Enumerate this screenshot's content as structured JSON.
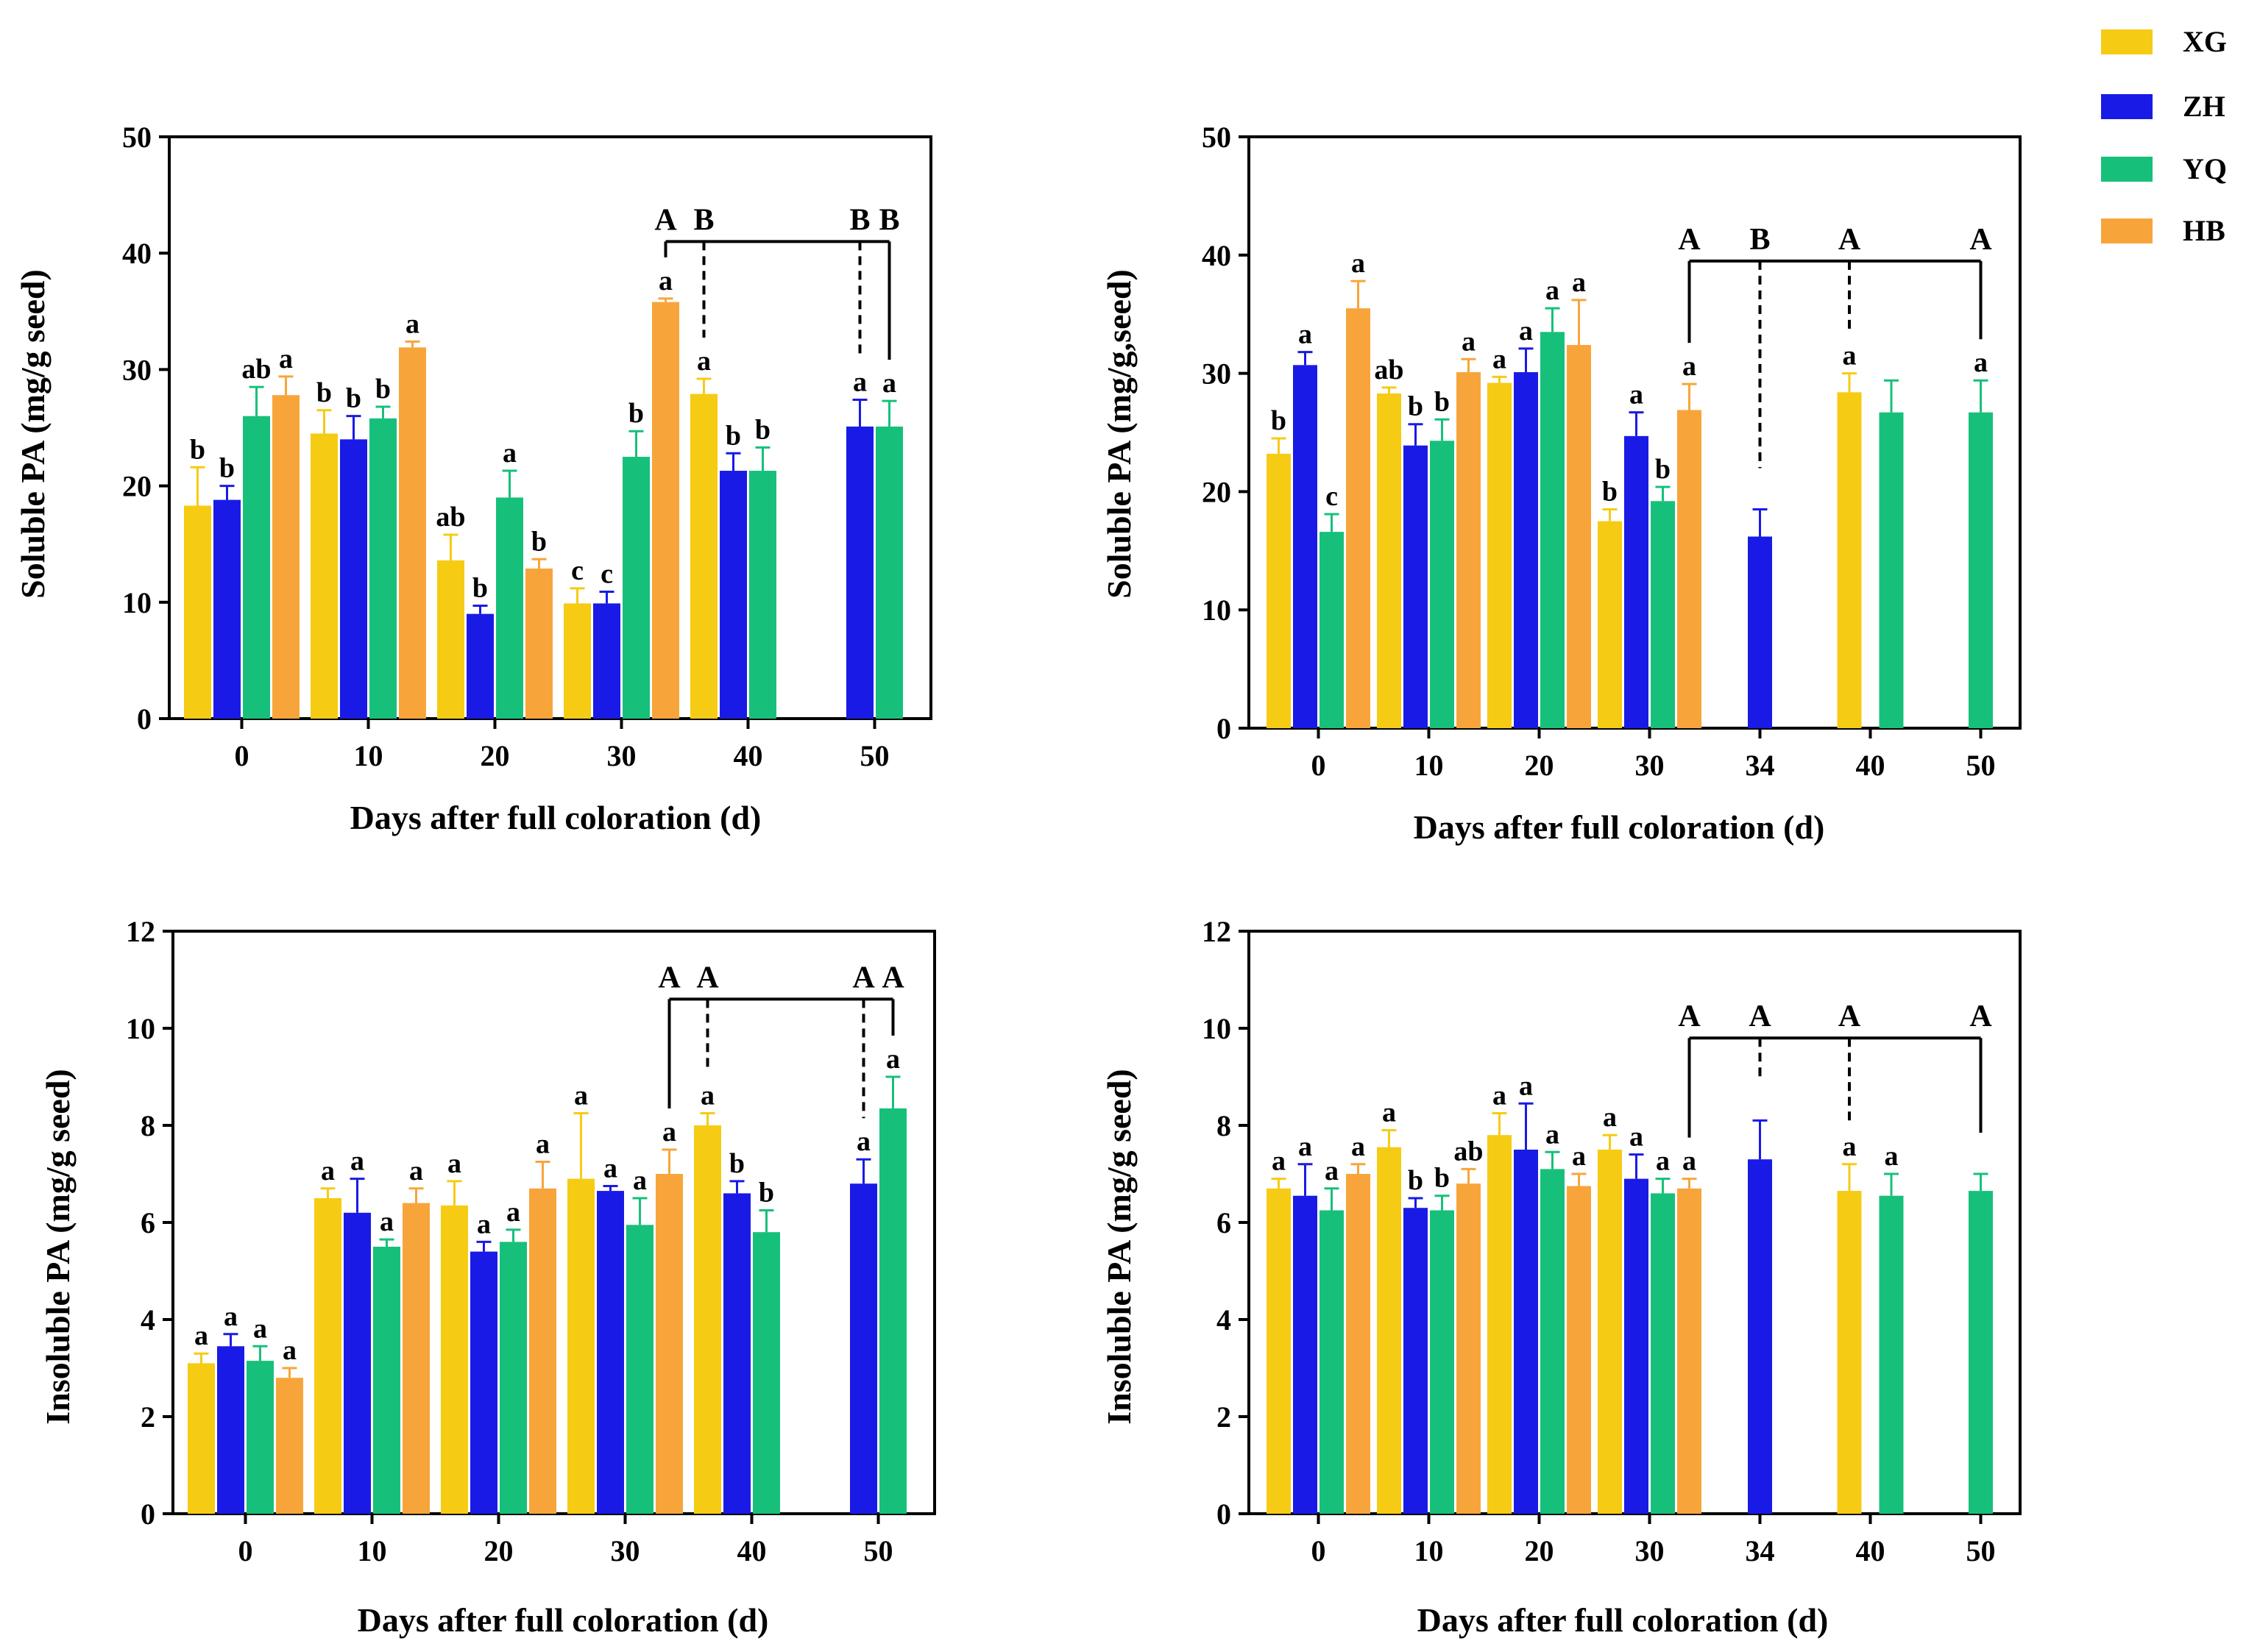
{
  "legend": [
    {
      "name": "XG",
      "color": "#F6CB14"
    },
    {
      "name": "ZH",
      "color": "#1A1AE6"
    },
    {
      "name": "YQ",
      "color": "#17C07A"
    },
    {
      "name": "HB",
      "color": "#F7A53A"
    }
  ],
  "chart_data": [
    {
      "type": "bar",
      "panel": "top-left",
      "ylabel": "Soluble PA (mg/g  seed)",
      "xlabel": "Days after full coloration (d)",
      "ylim": [
        0,
        50
      ],
      "yticks": [
        0,
        10,
        20,
        30,
        40,
        50
      ],
      "groups": [
        {
          "label": "0",
          "bars": [
            {
              "series": "XG",
              "value": 18.3,
              "err": 3.3,
              "sig": "b"
            },
            {
              "series": "ZH",
              "value": 18.8,
              "err": 1.2,
              "sig": "b"
            },
            {
              "series": "YQ",
              "value": 26.0,
              "err": 2.5,
              "sig": "ab"
            },
            {
              "series": "HB",
              "value": 27.8,
              "err": 1.6,
              "sig": "a"
            }
          ]
        },
        {
          "label": "10",
          "bars": [
            {
              "series": "XG",
              "value": 24.5,
              "err": 2.0,
              "sig": "b"
            },
            {
              "series": "ZH",
              "value": 24.0,
              "err": 2.0,
              "sig": "b"
            },
            {
              "series": "YQ",
              "value": 25.8,
              "err": 1.0,
              "sig": "b"
            },
            {
              "series": "HB",
              "value": 31.9,
              "err": 0.5,
              "sig": "a"
            }
          ]
        },
        {
          "label": "20",
          "bars": [
            {
              "series": "XG",
              "value": 13.6,
              "err": 2.2,
              "sig": "ab"
            },
            {
              "series": "ZH",
              "value": 9.0,
              "err": 0.7,
              "sig": "b"
            },
            {
              "series": "YQ",
              "value": 19.0,
              "err": 2.3,
              "sig": "a"
            },
            {
              "series": "HB",
              "value": 12.9,
              "err": 0.8,
              "sig": "b"
            }
          ]
        },
        {
          "label": "30",
          "bars": [
            {
              "series": "XG",
              "value": 9.9,
              "err": 1.3,
              "sig": "c"
            },
            {
              "series": "ZH",
              "value": 9.9,
              "err": 1.0,
              "sig": "c"
            },
            {
              "series": "YQ",
              "value": 22.5,
              "err": 2.2,
              "sig": "b"
            },
            {
              "series": "HB",
              "value": 35.8,
              "err": 0.3,
              "sig": "a"
            }
          ]
        },
        {
          "label": "40",
          "bars": [
            {
              "series": "XG",
              "value": 27.9,
              "err": 1.3,
              "sig": "a"
            },
            {
              "series": "ZH",
              "value": 21.3,
              "err": 1.5,
              "sig": "b"
            },
            {
              "series": "YQ",
              "value": 21.3,
              "err": 2.0,
              "sig": "b"
            },
            {
              "series": "HB",
              "value": null,
              "err": null,
              "sig": ""
            }
          ]
        },
        {
          "label": "50",
          "bars": [
            {
              "series": "XG",
              "value": null,
              "err": null,
              "sig": ""
            },
            {
              "series": "ZH",
              "value": 25.1,
              "err": 2.3,
              "sig": "a"
            },
            {
              "series": "YQ",
              "value": 25.1,
              "err": 2.2,
              "sig": "a"
            },
            {
              "series": "HB",
              "value": null,
              "err": null,
              "sig": ""
            }
          ]
        }
      ],
      "bracket": {
        "level": 41,
        "letters": [
          {
            "group": 3,
            "series": "HB",
            "letter": "A",
            "solid": true
          },
          {
            "group": 4,
            "series": "XG",
            "letter": "B",
            "solid": false
          },
          {
            "group": 5,
            "series": "ZH",
            "letter": "B",
            "solid": false
          },
          {
            "group": 5,
            "series": "YQ",
            "letter": "B",
            "solid": true
          }
        ]
      }
    },
    {
      "type": "bar",
      "panel": "top-right",
      "ylabel": "Soluble PA (mg/g,seed)",
      "xlabel": "Days after full coloration (d)",
      "ylim": [
        0,
        50
      ],
      "yticks": [
        0,
        10,
        20,
        30,
        40,
        50
      ],
      "groups": [
        {
          "label": "0",
          "bars": [
            {
              "series": "XG",
              "value": 23.2,
              "err": 1.3,
              "sig": "b"
            },
            {
              "series": "ZH",
              "value": 30.7,
              "err": 1.1,
              "sig": "a"
            },
            {
              "series": "YQ",
              "value": 16.6,
              "err": 1.5,
              "sig": "c"
            },
            {
              "series": "HB",
              "value": 35.5,
              "err": 2.3,
              "sig": "a"
            }
          ]
        },
        {
          "label": "10",
          "bars": [
            {
              "series": "XG",
              "value": 28.3,
              "err": 0.5,
              "sig": "ab"
            },
            {
              "series": "ZH",
              "value": 23.9,
              "err": 1.8,
              "sig": "b"
            },
            {
              "series": "YQ",
              "value": 24.3,
              "err": 1.8,
              "sig": "b"
            },
            {
              "series": "HB",
              "value": 30.1,
              "err": 1.1,
              "sig": "a"
            }
          ]
        },
        {
          "label": "20",
          "bars": [
            {
              "series": "XG",
              "value": 29.2,
              "err": 0.5,
              "sig": "a"
            },
            {
              "series": "ZH",
              "value": 30.1,
              "err": 2.0,
              "sig": "a"
            },
            {
              "series": "YQ",
              "value": 33.5,
              "err": 2.0,
              "sig": "a"
            },
            {
              "series": "HB",
              "value": 32.4,
              "err": 3.8,
              "sig": "a"
            }
          ]
        },
        {
          "label": "30",
          "bars": [
            {
              "series": "XG",
              "value": 17.5,
              "err": 1.0,
              "sig": "b"
            },
            {
              "series": "ZH",
              "value": 24.7,
              "err": 2.0,
              "sig": "a"
            },
            {
              "series": "YQ",
              "value": 19.2,
              "err": 1.2,
              "sig": "b"
            },
            {
              "series": "HB",
              "value": 26.9,
              "err": 2.2,
              "sig": "a"
            }
          ]
        },
        {
          "label": "34",
          "bars": [
            {
              "series": "ZH",
              "value": 16.2,
              "err": 2.3,
              "sig": ""
            }
          ]
        },
        {
          "label": "40",
          "bars": [
            {
              "series": "XG",
              "value": 28.4,
              "err": 1.6,
              "sig": "a"
            },
            {
              "series": "YQ",
              "value": 26.7,
              "err": 2.7,
              "sig": ""
            }
          ]
        },
        {
          "label": "50",
          "bars": [
            {
              "series": "YQ",
              "value": 26.7,
              "err": 2.7,
              "sig": "a"
            }
          ]
        }
      ],
      "bracket": {
        "level": 39.5,
        "letters": [
          {
            "group": 3,
            "series": "HB",
            "letter": "A",
            "solid": true
          },
          {
            "group": 4,
            "series": "ZH",
            "letter": "B",
            "solid": false
          },
          {
            "group": 5,
            "series": "XG",
            "letter": "A",
            "solid": false
          },
          {
            "group": 6,
            "series": "YQ",
            "letter": "A",
            "solid": true
          }
        ]
      }
    },
    {
      "type": "bar",
      "panel": "bottom-left",
      "ylabel": "Insoluble PA (mg/g  seed)",
      "xlabel": "Days after full coloration (d)",
      "ylim": [
        0,
        12
      ],
      "yticks": [
        0,
        2,
        4,
        6,
        8,
        10,
        12
      ],
      "groups": [
        {
          "label": "0",
          "bars": [
            {
              "series": "XG",
              "value": 3.1,
              "err": 0.2,
              "sig": "a"
            },
            {
              "series": "ZH",
              "value": 3.45,
              "err": 0.25,
              "sig": "a"
            },
            {
              "series": "YQ",
              "value": 3.15,
              "err": 0.3,
              "sig": "a"
            },
            {
              "series": "HB",
              "value": 2.8,
              "err": 0.2,
              "sig": "a"
            }
          ]
        },
        {
          "label": "10",
          "bars": [
            {
              "series": "XG",
              "value": 6.5,
              "err": 0.2,
              "sig": "a"
            },
            {
              "series": "ZH",
              "value": 6.2,
              "err": 0.7,
              "sig": "a"
            },
            {
              "series": "YQ",
              "value": 5.5,
              "err": 0.15,
              "sig": "a"
            },
            {
              "series": "HB",
              "value": 6.4,
              "err": 0.3,
              "sig": "a"
            }
          ]
        },
        {
          "label": "20",
          "bars": [
            {
              "series": "XG",
              "value": 6.35,
              "err": 0.5,
              "sig": "a"
            },
            {
              "series": "ZH",
              "value": 5.4,
              "err": 0.2,
              "sig": "a"
            },
            {
              "series": "YQ",
              "value": 5.6,
              "err": 0.25,
              "sig": "a"
            },
            {
              "series": "HB",
              "value": 6.7,
              "err": 0.55,
              "sig": "a"
            }
          ]
        },
        {
          "label": "30",
          "bars": [
            {
              "series": "XG",
              "value": 6.9,
              "err": 1.35,
              "sig": "a"
            },
            {
              "series": "ZH",
              "value": 6.65,
              "err": 0.1,
              "sig": "a"
            },
            {
              "series": "YQ",
              "value": 5.95,
              "err": 0.55,
              "sig": "a"
            },
            {
              "series": "HB",
              "value": 7.0,
              "err": 0.5,
              "sig": "a"
            }
          ]
        },
        {
          "label": "40",
          "bars": [
            {
              "series": "XG",
              "value": 8.0,
              "err": 0.25,
              "sig": "a"
            },
            {
              "series": "ZH",
              "value": 6.6,
              "err": 0.25,
              "sig": "b"
            },
            {
              "series": "YQ",
              "value": 5.8,
              "err": 0.45,
              "sig": "b"
            },
            {
              "series": "HB",
              "value": null,
              "err": null,
              "sig": ""
            }
          ]
        },
        {
          "label": "50",
          "bars": [
            {
              "series": "XG",
              "value": null,
              "err": null,
              "sig": ""
            },
            {
              "series": "ZH",
              "value": 6.8,
              "err": 0.5,
              "sig": "a"
            },
            {
              "series": "YQ",
              "value": 8.35,
              "err": 0.65,
              "sig": "a"
            },
            {
              "series": "HB",
              "value": null,
              "err": null,
              "sig": ""
            }
          ]
        }
      ],
      "bracket": {
        "level": 10.6,
        "letters": [
          {
            "group": 3,
            "series": "HB",
            "letter": "A",
            "solid": true
          },
          {
            "group": 4,
            "series": "XG",
            "letter": "A",
            "solid": false
          },
          {
            "group": 5,
            "series": "ZH",
            "letter": "A",
            "solid": false
          },
          {
            "group": 5,
            "series": "YQ",
            "letter": "A",
            "solid": true
          }
        ]
      }
    },
    {
      "type": "bar",
      "panel": "bottom-right",
      "ylabel": "Insoluble PA (mg/g  seed)",
      "xlabel": "Days after full coloration (d)",
      "ylim": [
        0,
        12
      ],
      "yticks": [
        0,
        2,
        4,
        6,
        8,
        10,
        12
      ],
      "groups": [
        {
          "label": "0",
          "bars": [
            {
              "series": "XG",
              "value": 6.7,
              "err": 0.2,
              "sig": "a"
            },
            {
              "series": "ZH",
              "value": 6.55,
              "err": 0.65,
              "sig": "a"
            },
            {
              "series": "YQ",
              "value": 6.25,
              "err": 0.45,
              "sig": "a"
            },
            {
              "series": "HB",
              "value": 7.0,
              "err": 0.2,
              "sig": "a"
            }
          ]
        },
        {
          "label": "10",
          "bars": [
            {
              "series": "XG",
              "value": 7.55,
              "err": 0.35,
              "sig": "a"
            },
            {
              "series": "ZH",
              "value": 6.3,
              "err": 0.2,
              "sig": "b"
            },
            {
              "series": "YQ",
              "value": 6.25,
              "err": 0.3,
              "sig": "b"
            },
            {
              "series": "HB",
              "value": 6.8,
              "err": 0.3,
              "sig": "ab"
            }
          ]
        },
        {
          "label": "20",
          "bars": [
            {
              "series": "XG",
              "value": 7.8,
              "err": 0.45,
              "sig": "a"
            },
            {
              "series": "ZH",
              "value": 7.5,
              "err": 0.95,
              "sig": "a"
            },
            {
              "series": "YQ",
              "value": 7.1,
              "err": 0.35,
              "sig": "a"
            },
            {
              "series": "HB",
              "value": 6.75,
              "err": 0.25,
              "sig": "a"
            }
          ]
        },
        {
          "label": "30",
          "bars": [
            {
              "series": "XG",
              "value": 7.5,
              "err": 0.3,
              "sig": "a"
            },
            {
              "series": "ZH",
              "value": 6.9,
              "err": 0.5,
              "sig": "a"
            },
            {
              "series": "YQ",
              "value": 6.6,
              "err": 0.3,
              "sig": "a"
            },
            {
              "series": "HB",
              "value": 6.7,
              "err": 0.2,
              "sig": "a"
            }
          ]
        },
        {
          "label": "34",
          "bars": [
            {
              "series": "ZH",
              "value": 7.3,
              "err": 0.8,
              "sig": ""
            }
          ]
        },
        {
          "label": "40",
          "bars": [
            {
              "series": "XG",
              "value": 6.65,
              "err": 0.55,
              "sig": "a"
            },
            {
              "series": "YQ",
              "value": 6.55,
              "err": 0.45,
              "sig": "a"
            }
          ]
        },
        {
          "label": "50",
          "bars": [
            {
              "series": "YQ",
              "value": 6.65,
              "err": 0.35,
              "sig": ""
            }
          ]
        }
      ],
      "bracket": {
        "level": 9.8,
        "letters": [
          {
            "group": 3,
            "series": "HB",
            "letter": "A",
            "solid": true
          },
          {
            "group": 4,
            "series": "ZH",
            "letter": "A",
            "solid": false
          },
          {
            "group": 5,
            "series": "XG",
            "letter": "A",
            "solid": false
          },
          {
            "group": 6,
            "series": "YQ",
            "letter": "A",
            "solid": true
          }
        ]
      }
    }
  ]
}
